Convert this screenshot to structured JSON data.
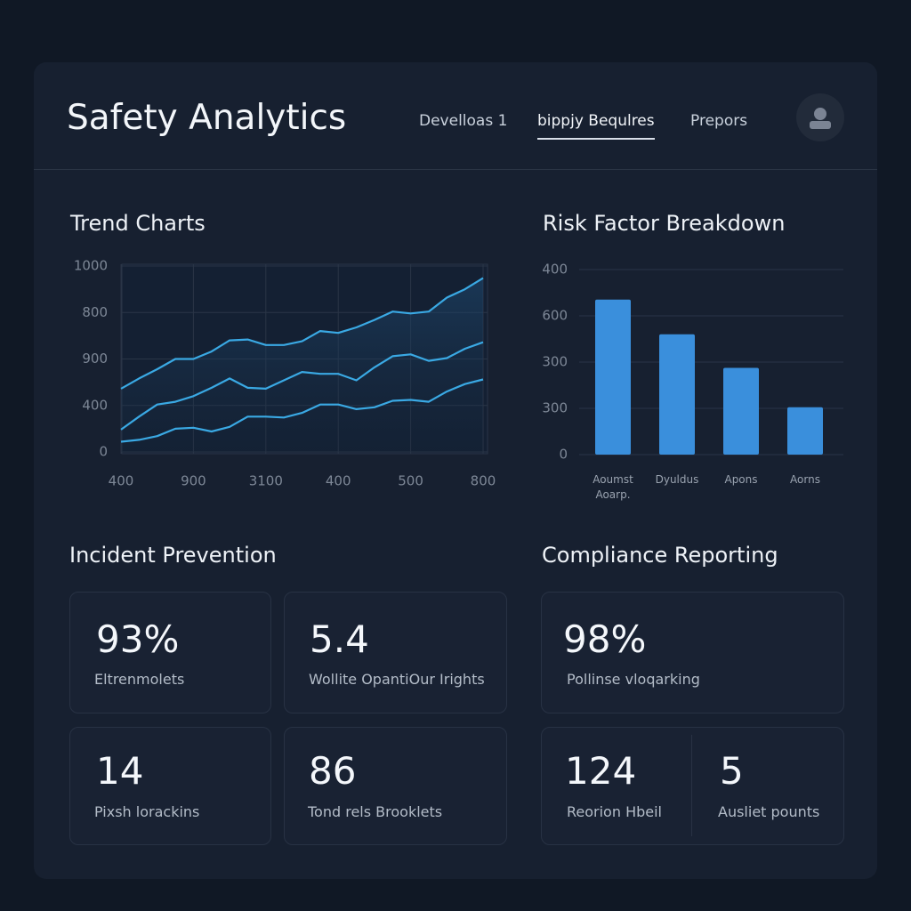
{
  "header": {
    "title": "Safety Analytics",
    "nav": [
      "Develloas 1",
      "bippjy Bequlres",
      "Prepors"
    ],
    "active_nav": 1
  },
  "sections": {
    "trend": "Trend Charts",
    "risk": "Risk Factor Breakdown",
    "incident": "Incident Prevention",
    "compliance": "Compliance Reporting"
  },
  "chart_data": [
    {
      "type": "line",
      "x": [
        0,
        0.25,
        0.5,
        0.75,
        1,
        1.25,
        1.5,
        1.75,
        2,
        2.25,
        2.5,
        2.75,
        3,
        3.25,
        3.5,
        3.75,
        4,
        4.25,
        4.5,
        4.75,
        5
      ],
      "xlim": [
        0,
        5
      ],
      "xticks": [
        {
          "value": 0,
          "label": "400"
        },
        {
          "value": 1,
          "label": "900"
        },
        {
          "value": 2,
          "label": "3100"
        },
        {
          "value": 3,
          "label": "400"
        },
        {
          "value": 4,
          "label": "500"
        },
        {
          "value": 5,
          "label": "800"
        }
      ],
      "ylim": [
        0,
        1000
      ],
      "yticks": [
        1000,
        {
          "value": 750,
          "label": "800"
        },
        {
          "value": 500,
          "label": "900"
        },
        {
          "value": 250,
          "label": "400"
        },
        0
      ],
      "grid": true,
      "series": [
        {
          "color": "#3aa9e4",
          "values": [
            340,
            395,
            445,
            500,
            500,
            540,
            600,
            605,
            575,
            575,
            595,
            650,
            640,
            670,
            710,
            755,
            745,
            755,
            830,
            875,
            935
          ]
        },
        {
          "color": "#3aa9e4",
          "values": [
            120,
            190,
            255,
            270,
            300,
            345,
            395,
            345,
            340,
            385,
            430,
            420,
            420,
            385,
            455,
            515,
            525,
            490,
            505,
            555,
            590
          ]
        },
        {
          "color": "#3aa9e4",
          "values": [
            55,
            65,
            85,
            125,
            130,
            110,
            135,
            190,
            190,
            185,
            210,
            255,
            255,
            230,
            240,
            275,
            280,
            270,
            325,
            365,
            390
          ]
        }
      ]
    },
    {
      "type": "bar",
      "categories": [
        "Aoumst Aoarp.",
        "Dyuldus",
        "Apons",
        "Aorns"
      ],
      "values": [
        670,
        520,
        375,
        205
      ],
      "color": "#3a8fdc",
      "ylim": [
        0,
        800
      ],
      "yticks": [
        {
          "value": 800,
          "label": "400"
        },
        600,
        {
          "value": 400,
          "label": "300"
        },
        {
          "value": 200,
          "label": "300"
        },
        0
      ],
      "grid": true
    }
  ],
  "incident_cards": [
    {
      "value": "93%",
      "label": "Eltrenmolets"
    },
    {
      "value": "5.4",
      "label": "Wollite OpantiOur Irights"
    },
    {
      "value": "14",
      "label": "Pixsh lorackins"
    },
    {
      "value": "86",
      "label": "Tond rels Brooklets"
    }
  ],
  "compliance_cards": [
    {
      "value": "98%",
      "label": "Pollinse vloqarking"
    },
    {
      "value": "124",
      "label": "Reorion Hbeil"
    },
    {
      "value": "5",
      "label": "Ausliet pounts"
    }
  ]
}
